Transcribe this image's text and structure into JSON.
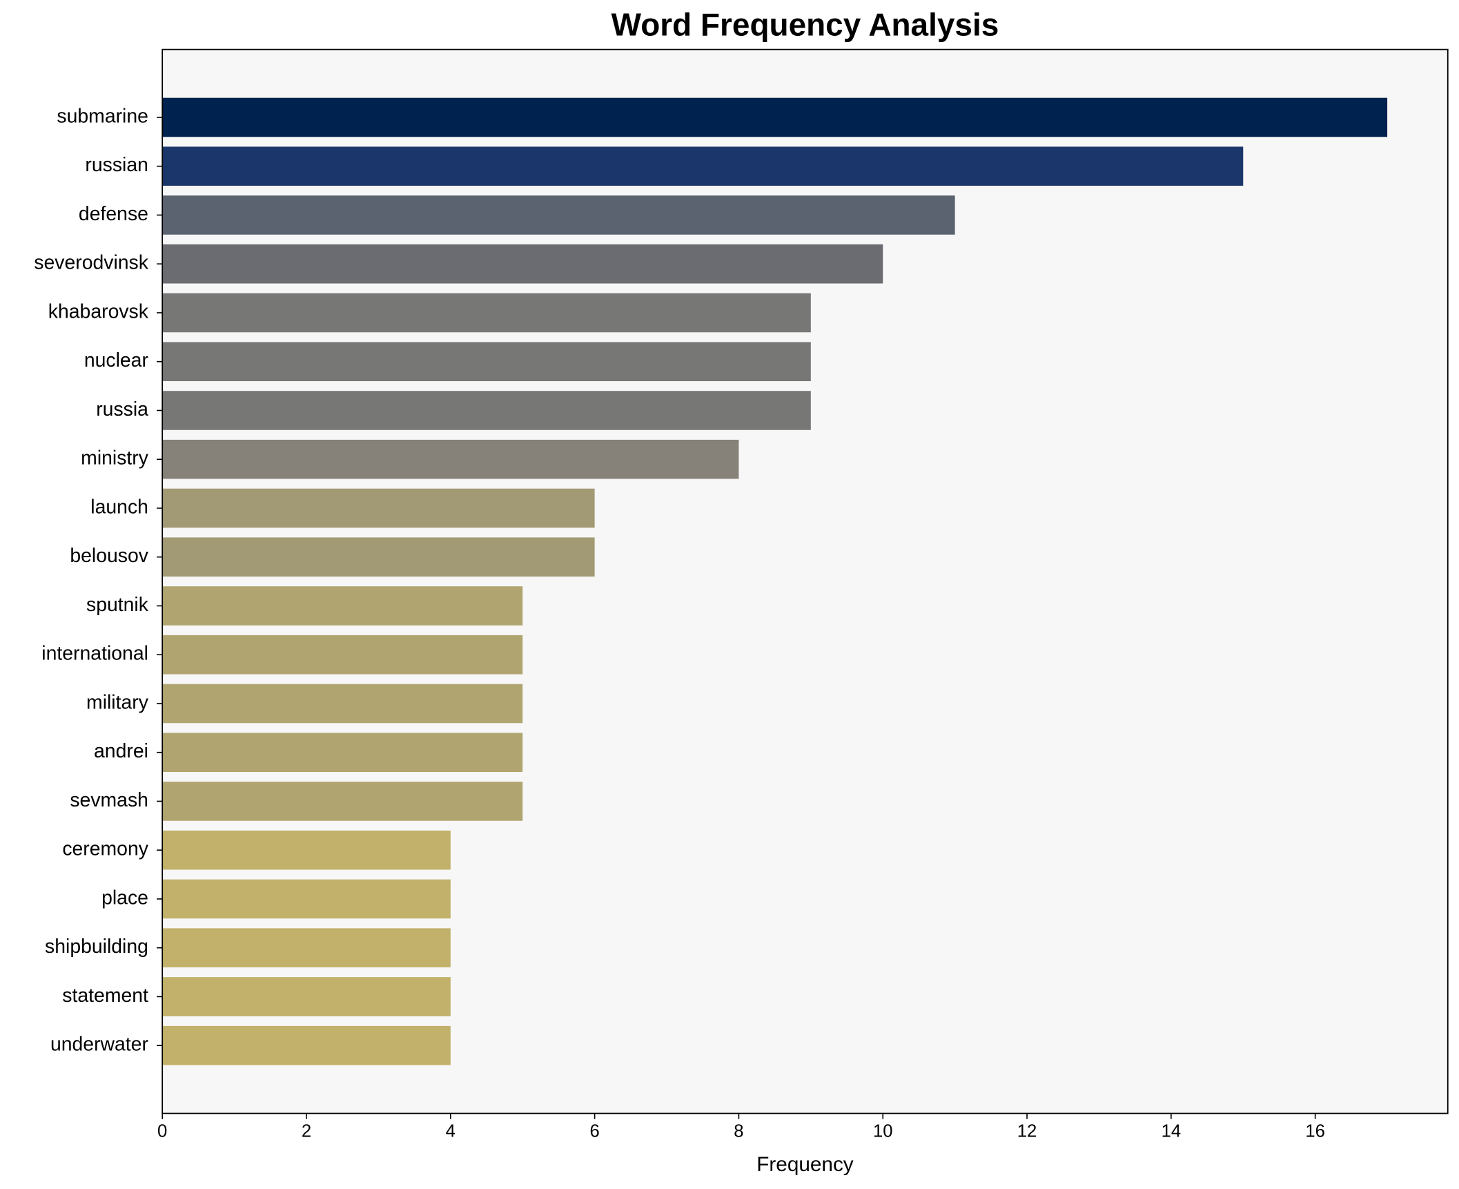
{
  "chart_data": {
    "type": "barh",
    "title": "Word Frequency Analysis",
    "xlabel": "Frequency",
    "categories": [
      "submarine",
      "russian",
      "defense",
      "severodvinsk",
      "khabarovsk",
      "nuclear",
      "russia",
      "ministry",
      "launch",
      "belousov",
      "sputnik",
      "international",
      "military",
      "andrei",
      "sevmash",
      "ceremony",
      "place",
      "shipbuilding",
      "statement",
      "underwater"
    ],
    "values": [
      17,
      15,
      11,
      10,
      9,
      9,
      9,
      8,
      6,
      6,
      5,
      5,
      5,
      5,
      5,
      4,
      4,
      4,
      4,
      4
    ],
    "colors": [
      "#00224e",
      "#1a366b",
      "#5b6270",
      "#6b6c71",
      "#777776",
      "#777776",
      "#777776",
      "#868279",
      "#a29a74",
      "#a29a74",
      "#b0a570",
      "#b0a570",
      "#b0a570",
      "#b0a570",
      "#b0a570",
      "#c1b16b",
      "#c1b16b",
      "#c1b16b",
      "#c1b16b",
      "#c1b16b"
    ],
    "xlim": [
      0,
      17.84
    ],
    "xticks": [
      0,
      2,
      4,
      6,
      8,
      10,
      12,
      14,
      16
    ]
  }
}
